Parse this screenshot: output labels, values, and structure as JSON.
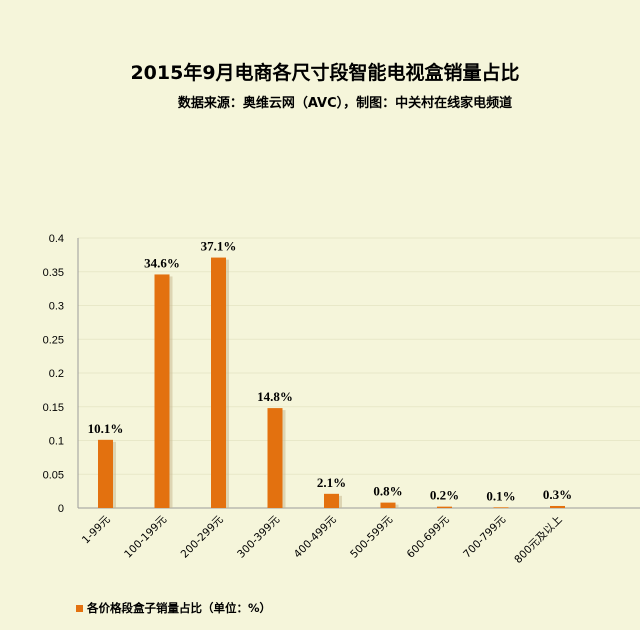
{
  "chart_data": {
    "type": "bar",
    "title": "2015年9月电商各尺寸段智能电视盒销量占比",
    "subtitle": "数据来源：奥维云网（AVC），制图：中关村在线家电频道",
    "categories": [
      "1-99元",
      "100-199元",
      "200-299元",
      "300-399元",
      "400-499元",
      "500-599元",
      "600-699元",
      "700-799元",
      "800元及以上"
    ],
    "values": [
      0.101,
      0.346,
      0.371,
      0.148,
      0.021,
      0.008,
      0.002,
      0.001,
      0.003
    ],
    "data_labels": [
      "10.1%",
      "34.6%",
      "37.1%",
      "14.8%",
      "2.1%",
      "0.8%",
      "0.2%",
      "0.1%",
      "0.3%"
    ],
    "series": [
      {
        "name": "各价格段盒子销量占比（单位：%）",
        "values": [
          0.101,
          0.346,
          0.371,
          0.148,
          0.021,
          0.008,
          0.002,
          0.001,
          0.003
        ]
      }
    ],
    "yticks": [
      "0",
      "0.05",
      "0.1",
      "0.15",
      "0.2",
      "0.25",
      "0.3",
      "0.35",
      "0.4"
    ],
    "ylim": [
      0,
      0.4
    ],
    "grid": true,
    "legend_position": "bottom-left",
    "bar_color": "#e3710f",
    "grid_color": "#e8e8c8"
  }
}
